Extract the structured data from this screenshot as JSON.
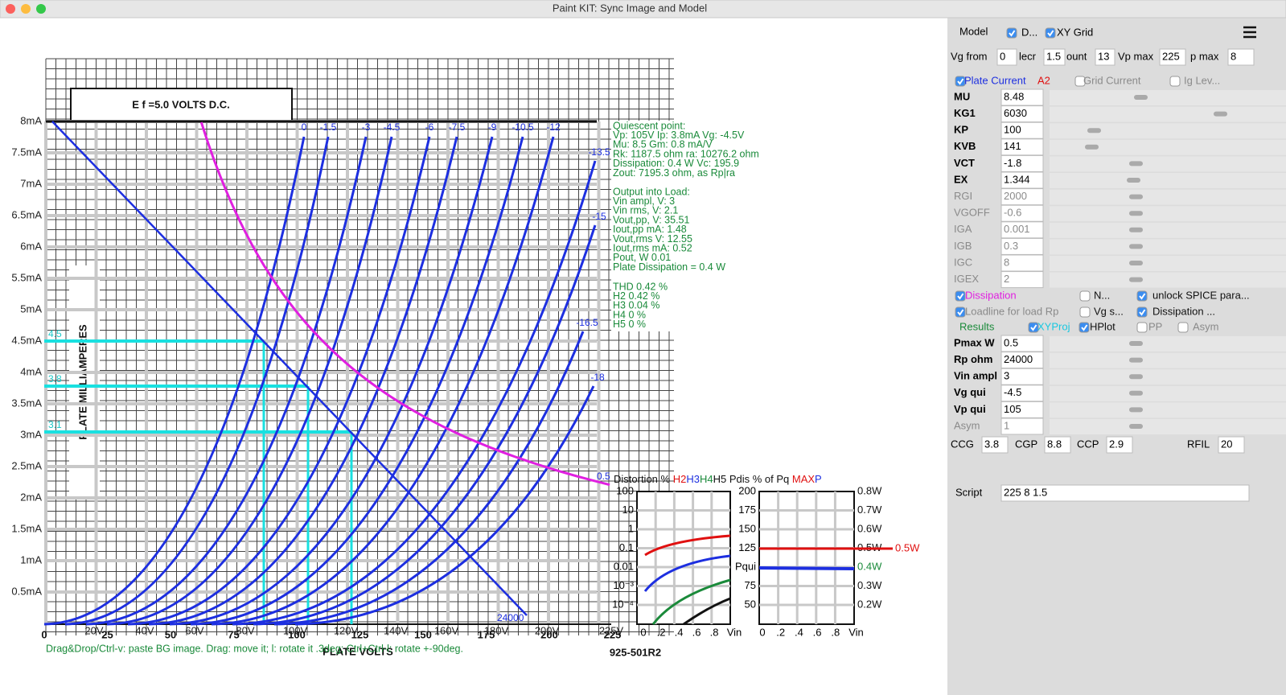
{
  "window": {
    "title": "Paint KIT: Sync Image and Model"
  },
  "scan": {
    "heading": "E f =5.0 VOLTS D.C.",
    "y_title": "PLATE MILLIAMPERES",
    "x_title": "PLATE VOLTS",
    "code": "925-501R2",
    "x_digits": [
      "0",
      "25",
      "50",
      "75",
      "100",
      "125",
      "150",
      "175",
      "200",
      "225"
    ]
  },
  "plot": {
    "y_labels": [
      "8mA",
      "7.5mA",
      "7mA",
      "6.5mA",
      "6mA",
      "5.5mA",
      "5mA",
      "4.5mA",
      "4mA",
      "3.5mA",
      "3mA",
      "2.5mA",
      "2mA",
      "1.5mA",
      "1mA",
      "0.5mA"
    ],
    "x_labels": [
      "20V",
      "40V",
      "60V",
      "80V",
      "100V",
      "120V",
      "140V",
      "160V",
      "180V",
      "200V",
      "225V"
    ],
    "curve_labels": [
      "0",
      "-1.5",
      "-3",
      "-4.5",
      "-6",
      "-7.5",
      "-9",
      "-10.5",
      "-12",
      "-13.5",
      "-15",
      "-16.5",
      "-18"
    ],
    "dissipation_label": "0.5",
    "loadline_label": "24000",
    "proj_labels": [
      "4.5",
      "3.8",
      "3.1"
    ],
    "info": [
      [
        "Quiescent point:",
        "Vp: 105V  Ip: 3.8mA  Vg: -4.5V",
        "Mu: 8.5 Gm: 0.8 mA/V",
        "Rk: 1187.5 ohm ra: 10276.2 ohm",
        "Dissipation: 0.4 W Vc: 195.9",
        "Zout: 7195.3 ohm, as Rp|ra"
      ],
      [
        "Output into Load:",
        "Vin ampl, V: 3",
        "Vin rms,  V: 2.1",
        "Vout,pp,   V: 35.51",
        "Iout,pp   mA: 1.48",
        "Vout,rms   V: 12.55",
        "Iout,rms  mA: 0.52",
        "Pout, W       0.01",
        "Plate Dissipation = 0.4 W"
      ],
      [
        "THD 0.42 %",
        "  H2 0.42 %",
        "  H3 0.04 %",
        "  H4 0 %",
        "  H5 0 %"
      ]
    ],
    "hint": "Drag&Drop/Ctrl-v: paste BG image. Drag: move it; l: rotate it .3deg; Ctrl+Ctrl-l: rotate +-90deg."
  },
  "distortion": {
    "header": [
      "Distortion % ",
      "H2",
      "H3",
      "H4",
      "H5",
      " Pdis % of Pq ",
      "MAX",
      "P"
    ],
    "left_ticks": [
      "100",
      "10",
      "1",
      "0.1",
      "0.01",
      "10⁻³",
      "10⁻⁴"
    ],
    "mid_ticks": [
      "200",
      "175",
      "150",
      "125",
      "Pqui",
      "75",
      "50"
    ],
    "right_ticks": [
      "0.8W",
      "0.7W",
      "0.6W",
      "0.5W",
      "0.4W",
      "0.3W",
      "0.2W"
    ],
    "max_label": "0.5W",
    "x_ticks": [
      "0",
      ".2",
      ".4",
      ".6",
      ".8",
      "Vin"
    ]
  },
  "panel": {
    "model": "Model",
    "top_checks": [
      {
        "label": "D...",
        "checked": true
      },
      {
        "label": "XY Grid",
        "checked": true
      }
    ],
    "range": [
      {
        "label": "Vg from",
        "value": "0"
      },
      {
        "label": "lecr",
        "value": "1.5"
      },
      {
        "label": "ount",
        "value": "13"
      },
      {
        "label": "Vp max",
        "value": "225"
      },
      {
        "label": "p max",
        "value": "8"
      }
    ],
    "curve_checks": [
      {
        "label": "Plate Current",
        "checked": true
      },
      {
        "label": "Grid Current",
        "checked": false
      },
      {
        "label": "Ig Lev...",
        "checked": false
      }
    ],
    "a2": "A2",
    "params": [
      [
        "MU",
        "8.48"
      ],
      [
        "KG1",
        "6030"
      ],
      [
        "KP",
        "100"
      ],
      [
        "KVB",
        "141"
      ],
      [
        "VCT",
        "-1.8"
      ],
      [
        "EX",
        "1.344"
      ],
      [
        "RGI",
        "2000"
      ],
      [
        "VGOFF",
        "-0.6"
      ],
      [
        "IGA",
        "0.001"
      ],
      [
        "IGB",
        "0.3"
      ],
      [
        "IGC",
        "8"
      ],
      [
        "IGEX",
        "2"
      ]
    ],
    "option_checks": [
      {
        "label": "Dissipation",
        "checked": true
      },
      {
        "label": "N...",
        "checked": false
      },
      {
        "label": "unlock SPICE para...",
        "checked": true
      },
      {
        "label": "Loadline for load Rp",
        "checked": true
      },
      {
        "label": "Vg s...",
        "checked": false
      },
      {
        "label": "Dissipation ...",
        "checked": true
      }
    ],
    "results": "Results",
    "result_checks": [
      {
        "label": "XYProj",
        "checked": true
      },
      {
        "label": "HPlot",
        "checked": true
      },
      {
        "label": "PP",
        "checked": false
      },
      {
        "label": "Asym",
        "checked": false
      }
    ],
    "result_params": [
      [
        "Pmax W",
        "0.5"
      ],
      [
        "Rp ohm",
        "24000"
      ],
      [
        "Vin ampl",
        "3"
      ],
      [
        "Vg qui",
        "-4.5"
      ],
      [
        "Vp qui",
        "105"
      ],
      [
        "Asym",
        "1"
      ]
    ],
    "caps": [
      [
        "CCG",
        "3.8"
      ],
      [
        "CGP",
        "8.8"
      ],
      [
        "CCP",
        "2.9"
      ],
      [
        "RFIL",
        "20"
      ]
    ],
    "script_label": "Script",
    "script_value": "225 8 1.5"
  }
}
